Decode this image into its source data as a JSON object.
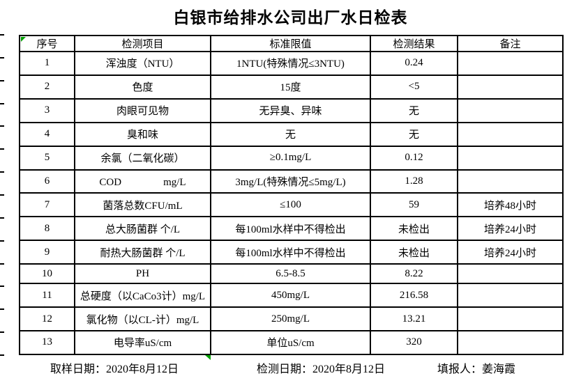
{
  "title": "白银市给排水公司出厂水日检表",
  "colors": {
    "marker_green": "#00A000",
    "border_black": "#000000",
    "background": "#ffffff"
  },
  "table": {
    "columns": [
      "序号",
      "检测项目",
      "标准限值",
      "检测结果",
      "备注"
    ],
    "rows": [
      {
        "no": "1",
        "item": "浑浊度（NTU）",
        "limit": "1NTU(特殊情况≤3NTU)",
        "result": "0.24",
        "note": ""
      },
      {
        "no": "2",
        "item": "色度",
        "limit": "15度",
        "result": "<5",
        "note": ""
      },
      {
        "no": "3",
        "item": "肉眼可见物",
        "limit": "无异臭、异味",
        "result": "无",
        "note": ""
      },
      {
        "no": "4",
        "item": "臭和味",
        "limit": "无",
        "result": "无",
        "note": ""
      },
      {
        "no": "5",
        "item": "余氯（二氧化碳）",
        "limit": "≥0.1mg/L",
        "result": "0.12",
        "note": ""
      },
      {
        "no": "6",
        "item": "COD　　　　mg/L",
        "limit": "3mg/L(特殊情况≤5mg/L)",
        "result": "1.28",
        "note": ""
      },
      {
        "no": "7",
        "item": "菌落总数CFU/mL",
        "limit": "≤100",
        "result": "59",
        "note": "培养48小时"
      },
      {
        "no": "8",
        "item": "总大肠菌群 个/L",
        "limit": "每100ml水样中不得检出",
        "result": "未检出",
        "note": "培养24小时"
      },
      {
        "no": "9",
        "item": "耐热大肠菌群 个/L",
        "limit": "每100ml水样中不得检出",
        "result": "未检出",
        "note": "培养24小时"
      },
      {
        "no": "10",
        "item": "PH",
        "limit": "6.5-8.5",
        "result": "8.22",
        "note": ""
      },
      {
        "no": "11",
        "item": "总硬度（以CaCo3计）mg/L",
        "limit": "450mg/L",
        "result": "216.58",
        "note": ""
      },
      {
        "no": "12",
        "item": "氯化物（以CL-计）mg/L",
        "limit": "250mg/L",
        "result": "13.21",
        "note": ""
      },
      {
        "no": "13",
        "item": "电导率uS/cm",
        "limit": "单位uS/cm",
        "result": "320",
        "note": ""
      }
    ]
  },
  "footer": {
    "sampling": "取样日期：2020年8月12日",
    "testing": "检测日期：2020年8月12日",
    "reporter": "填报人：姜海霞"
  }
}
